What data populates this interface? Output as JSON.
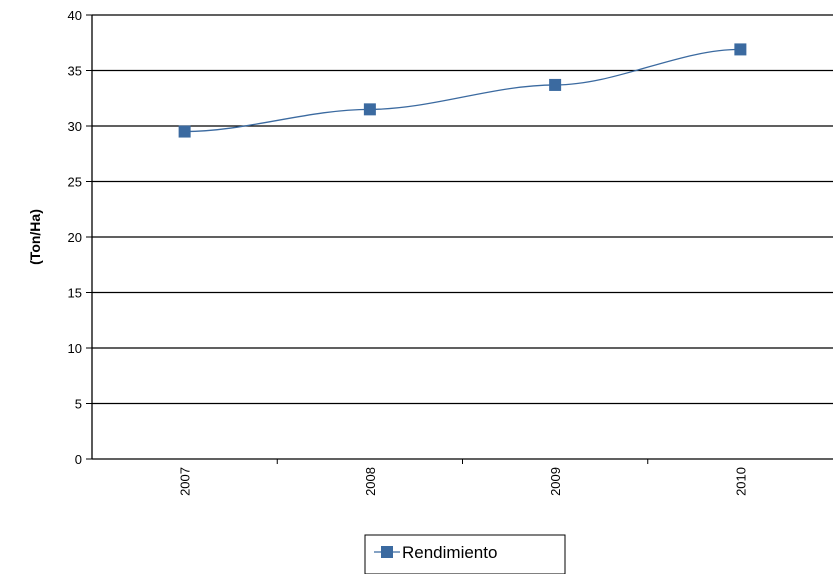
{
  "chart_data": {
    "type": "line",
    "title": "",
    "xlabel": "",
    "ylabel": "(Ton/Ha)",
    "categories": [
      "2007",
      "2008",
      "2009",
      "2010"
    ],
    "series": [
      {
        "name": "Rendimiento",
        "values": [
          29.5,
          31.5,
          33.7,
          36.9
        ],
        "color": "#3b6aa0"
      }
    ],
    "ylim": [
      0,
      40
    ],
    "yticks": [
      0,
      5,
      10,
      15,
      20,
      25,
      30,
      35,
      40
    ],
    "grid": true,
    "legend_position": "bottom",
    "colors": {
      "gridline": "#000000",
      "axis": "#000000",
      "line": "#3b6aa0"
    }
  }
}
